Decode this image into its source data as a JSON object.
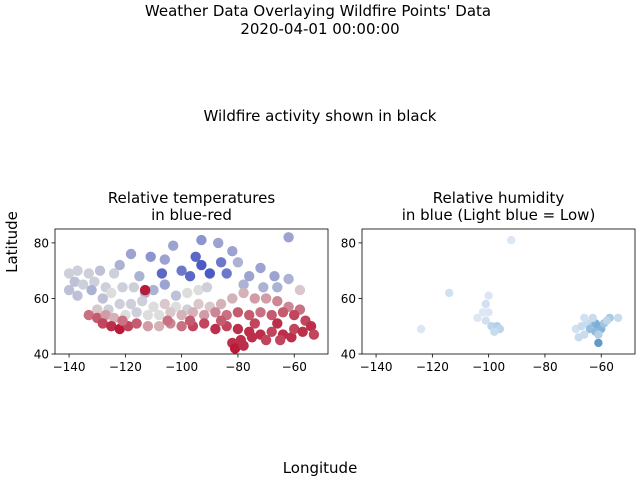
{
  "figure": {
    "title_line1": "Weather Data Overlaying Wildfire Points' Data",
    "title_line2": "2020-04-01 00:00:00",
    "subtitle": "Wildfire activity shown in black",
    "xlabel": "Longitude",
    "ylabel": "Latitude"
  },
  "chart_data": [
    {
      "type": "scatter",
      "title": [
        "Relative temperatures",
        "in blue-red"
      ],
      "xlim": [
        -145,
        -48
      ],
      "ylim": [
        40,
        85
      ],
      "xticks": [
        -140,
        -120,
        -100,
        -80,
        -60
      ],
      "yticks": [
        40,
        60,
        80
      ],
      "colors": {
        "cold": "#3b4cc0",
        "mid": "#dddddd",
        "hot": "#b40426"
      },
      "points": [
        [
          -93,
          81,
          0.25
        ],
        [
          -62,
          82,
          0.3
        ],
        [
          -103,
          79,
          0.3
        ],
        [
          -118,
          76,
          0.3
        ],
        [
          -87,
          80,
          0.3
        ],
        [
          -82,
          77,
          0.3
        ],
        [
          -111,
          75,
          0.25
        ],
        [
          -95,
          75,
          0.1
        ],
        [
          -80,
          73,
          0.35
        ],
        [
          -122,
          72,
          0.35
        ],
        [
          -106,
          74,
          0.3
        ],
        [
          -72,
          71,
          0.3
        ],
        [
          -93,
          72,
          0.05
        ],
        [
          -86,
          73,
          0.15
        ],
        [
          -100,
          70,
          0.15
        ],
        [
          -107,
          69,
          0.1
        ],
        [
          -90,
          69,
          0.05
        ],
        [
          -84,
          69,
          0.15
        ],
        [
          -97,
          68,
          0.1
        ],
        [
          -115,
          68,
          0.35
        ],
        [
          -67,
          68,
          0.3
        ],
        [
          -62,
          67,
          0.35
        ],
        [
          -76,
          68,
          0.3
        ],
        [
          -140,
          69,
          0.45
        ],
        [
          -137,
          70,
          0.45
        ],
        [
          -133,
          69,
          0.45
        ],
        [
          -129,
          70,
          0.4
        ],
        [
          -124,
          69,
          0.45
        ],
        [
          -138,
          66,
          0.4
        ],
        [
          -135,
          65,
          0.45
        ],
        [
          -131,
          66,
          0.45
        ],
        [
          -127,
          64,
          0.45
        ],
        [
          -140,
          63,
          0.4
        ],
        [
          -137,
          61,
          0.4
        ],
        [
          -132,
          63,
          0.35
        ],
        [
          -128,
          60,
          0.4
        ],
        [
          -125,
          62,
          0.5
        ],
        [
          -121,
          64,
          0.45
        ],
        [
          -117,
          64,
          0.45
        ],
        [
          -113,
          62,
          0.35
        ],
        [
          -110,
          63,
          0.35
        ],
        [
          -106,
          65,
          0.3
        ],
        [
          -102,
          61,
          0.4
        ],
        [
          -98,
          62,
          0.5
        ],
        [
          -94,
          63,
          0.5
        ],
        [
          -91,
          64,
          0.45
        ],
        [
          -78,
          65,
          0.35
        ],
        [
          -71,
          64,
          0.35
        ],
        [
          -66,
          64,
          0.35
        ],
        [
          -58,
          63,
          0.55
        ],
        [
          -122,
          58,
          0.45
        ],
        [
          -118,
          58,
          0.45
        ],
        [
          -114,
          59,
          0.45
        ],
        [
          -110,
          57,
          0.5
        ],
        [
          -106,
          58,
          0.55
        ],
        [
          -102,
          57,
          0.5
        ],
        [
          -98,
          56,
          0.45
        ],
        [
          -94,
          58,
          0.55
        ],
        [
          -90,
          57,
          0.55
        ],
        [
          -86,
          58,
          0.6
        ],
        [
          -82,
          60,
          0.6
        ],
        [
          -78,
          62,
          0.6
        ],
        [
          -74,
          60,
          0.65
        ],
        [
          -70,
          60,
          0.65
        ],
        [
          -66,
          59,
          0.7
        ],
        [
          -62,
          57,
          0.7
        ],
        [
          -58,
          56,
          0.75
        ],
        [
          -126,
          56,
          0.45
        ],
        [
          -130,
          56,
          0.55
        ],
        [
          -133,
          54,
          0.75
        ],
        [
          -130,
          53,
          0.8
        ],
        [
          -127,
          54,
          0.65
        ],
        [
          -124,
          53,
          0.6
        ],
        [
          -120,
          54,
          0.5
        ],
        [
          -116,
          55,
          0.45
        ],
        [
          -112,
          54,
          0.5
        ],
        [
          -108,
          54,
          0.5
        ],
        [
          -104,
          55,
          0.55
        ],
        [
          -100,
          54,
          0.6
        ],
        [
          -96,
          55,
          0.6
        ],
        [
          -92,
          54,
          0.65
        ],
        [
          -88,
          55,
          0.7
        ],
        [
          -84,
          54,
          0.75
        ],
        [
          -80,
          55,
          0.8
        ],
        [
          -76,
          54,
          0.8
        ],
        [
          -72,
          55,
          0.75
        ],
        [
          -68,
          54,
          0.8
        ],
        [
          -64,
          55,
          0.8
        ],
        [
          -60,
          54,
          0.85
        ],
        [
          -56,
          52,
          0.85
        ],
        [
          -54,
          50,
          0.9
        ],
        [
          -128,
          51,
          0.85
        ],
        [
          -125,
          50,
          0.9
        ],
        [
          -122,
          49,
          0.95
        ],
        [
          -119,
          50,
          0.85
        ],
        [
          -116,
          51,
          0.8
        ],
        [
          -112,
          50,
          0.65
        ],
        [
          -108,
          50,
          0.6
        ],
        [
          -104,
          51,
          0.7
        ],
        [
          -100,
          50,
          0.75
        ],
        [
          -96,
          50,
          0.85
        ],
        [
          -92,
          51,
          0.85
        ],
        [
          -88,
          49,
          0.9
        ],
        [
          -84,
          50,
          0.85
        ],
        [
          -80,
          49,
          0.9
        ],
        [
          -76,
          48,
          0.9
        ],
        [
          -72,
          47,
          0.9
        ],
        [
          -68,
          48,
          0.85
        ],
        [
          -64,
          47,
          0.9
        ],
        [
          -61,
          46,
          0.9
        ],
        [
          -65,
          45,
          0.85
        ],
        [
          -70,
          45,
          0.85
        ],
        [
          -75,
          46,
          0.9
        ],
        [
          -79,
          45,
          0.9
        ],
        [
          -82,
          44,
          0.9
        ],
        [
          -81,
          42,
          0.95
        ],
        [
          -78,
          43,
          0.9
        ],
        [
          -60,
          49,
          0.85
        ],
        [
          -57,
          48,
          0.9
        ],
        [
          -53,
          47,
          0.85
        ],
        [
          -113,
          63,
          0.95
        ],
        [
          -97,
          52,
          0.8
        ],
        [
          -105,
          52,
          0.75
        ],
        [
          -121,
          52,
          0.75
        ],
        [
          -86,
          52,
          0.8
        ],
        [
          -74,
          51,
          0.85
        ],
        [
          -66,
          51,
          0.9
        ]
      ]
    },
    {
      "type": "scatter",
      "title": [
        "Relative humidity",
        "in blue (Light blue = Low)"
      ],
      "xlim": [
        -145,
        -48
      ],
      "ylim": [
        40,
        85
      ],
      "xticks": [
        -140,
        -120,
        -100,
        -80,
        -60
      ],
      "yticks": [
        40,
        60,
        80
      ],
      "colors": {
        "low": "#eef3fa",
        "high": "#2e7ebc"
      },
      "points": [
        [
          -92,
          81,
          0.1
        ],
        [
          -114,
          62,
          0.15
        ],
        [
          -100,
          61,
          0.1
        ],
        [
          -101,
          58,
          0.15
        ],
        [
          -124,
          49,
          0.1
        ],
        [
          -104,
          53,
          0.1
        ],
        [
          -101,
          52,
          0.15
        ],
        [
          -99,
          50,
          0.25
        ],
        [
          -97,
          50,
          0.3
        ],
        [
          -96,
          49,
          0.25
        ],
        [
          -98,
          48,
          0.2
        ],
        [
          -102,
          55,
          0.1
        ],
        [
          -100,
          55,
          0.1
        ],
        [
          -69,
          49,
          0.15
        ],
        [
          -67,
          50,
          0.2
        ],
        [
          -65,
          51,
          0.2
        ],
        [
          -63,
          50,
          0.35
        ],
        [
          -62,
          51,
          0.55
        ],
        [
          -61,
          50,
          0.6
        ],
        [
          -60,
          49,
          0.55
        ],
        [
          -64,
          49,
          0.45
        ],
        [
          -62,
          48,
          0.5
        ],
        [
          -59,
          51,
          0.4
        ],
        [
          -66,
          47,
          0.2
        ],
        [
          -68,
          46,
          0.2
        ],
        [
          -61,
          47,
          0.3
        ],
        [
          -61,
          44,
          0.75
        ],
        [
          -57,
          53,
          0.35
        ],
        [
          -54,
          53,
          0.2
        ],
        [
          -63,
          53,
          0.2
        ],
        [
          -66,
          53,
          0.15
        ],
        [
          -58,
          52,
          0.25
        ]
      ]
    }
  ]
}
